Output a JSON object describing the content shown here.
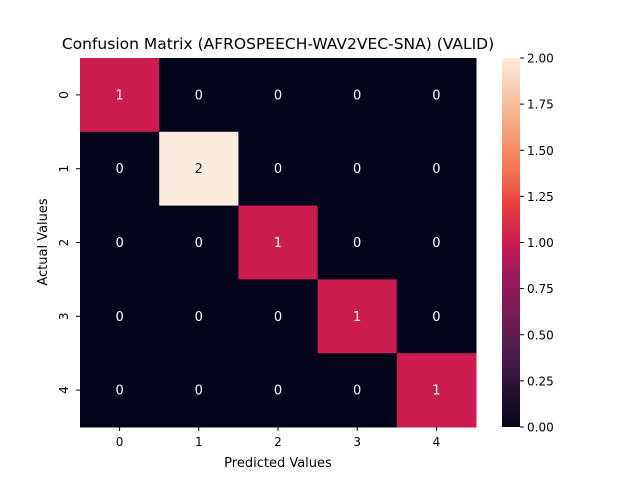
{
  "chart_data": {
    "type": "heatmap",
    "title": "Confusion Matrix (AFROSPEECH-WAV2VEC-SNA) (VALID)",
    "xlabel": "Predicted Values",
    "ylabel": "Actual Values",
    "x_categories": [
      "0",
      "1",
      "2",
      "3",
      "4"
    ],
    "y_categories": [
      "0",
      "1",
      "2",
      "3",
      "4"
    ],
    "values": [
      [
        1,
        0,
        0,
        0,
        0
      ],
      [
        0,
        2,
        0,
        0,
        0
      ],
      [
        0,
        0,
        1,
        0,
        0
      ],
      [
        0,
        0,
        0,
        1,
        0
      ],
      [
        0,
        0,
        0,
        0,
        1
      ]
    ],
    "colorbar": {
      "range": [
        0,
        2
      ],
      "ticks": [
        "0.00",
        "0.25",
        "0.50",
        "0.75",
        "1.00",
        "1.25",
        "1.50",
        "1.75",
        "2.00"
      ],
      "colormap": "rocket",
      "colors": [
        "#03051a",
        "#4c1d4b",
        "#a11a5b",
        "#cb1b4f",
        "#e83f3f",
        "#f37651",
        "#f6b48e",
        "#faebdd"
      ]
    },
    "annotations": true
  }
}
